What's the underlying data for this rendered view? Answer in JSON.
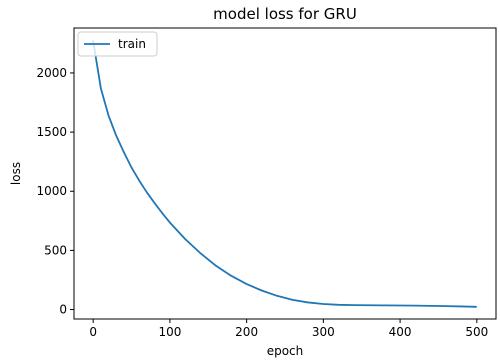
{
  "chart_data": {
    "type": "line",
    "title": "model loss for GRU",
    "xlabel": "epoch",
    "ylabel": "loss",
    "xlim": [
      -25,
      525
    ],
    "ylim": [
      -80,
      2380
    ],
    "xticks": [
      0,
      100,
      200,
      300,
      400,
      500
    ],
    "yticks": [
      0,
      500,
      1000,
      1500,
      2000
    ],
    "grid": false,
    "legend": "upper left",
    "series": [
      {
        "name": "train",
        "color": "#1f77b4",
        "x": [
          0,
          10,
          20,
          30,
          40,
          50,
          60,
          70,
          80,
          90,
          100,
          120,
          140,
          160,
          180,
          200,
          220,
          240,
          260,
          280,
          300,
          320,
          340,
          360,
          380,
          400,
          420,
          440,
          460,
          480,
          499
        ],
        "y": [
          2270,
          1870,
          1640,
          1470,
          1330,
          1200,
          1090,
          990,
          900,
          815,
          735,
          595,
          475,
          370,
          285,
          215,
          160,
          115,
          82,
          60,
          47,
          40,
          37,
          36,
          35,
          34,
          33,
          31,
          29,
          26,
          23
        ]
      }
    ]
  }
}
